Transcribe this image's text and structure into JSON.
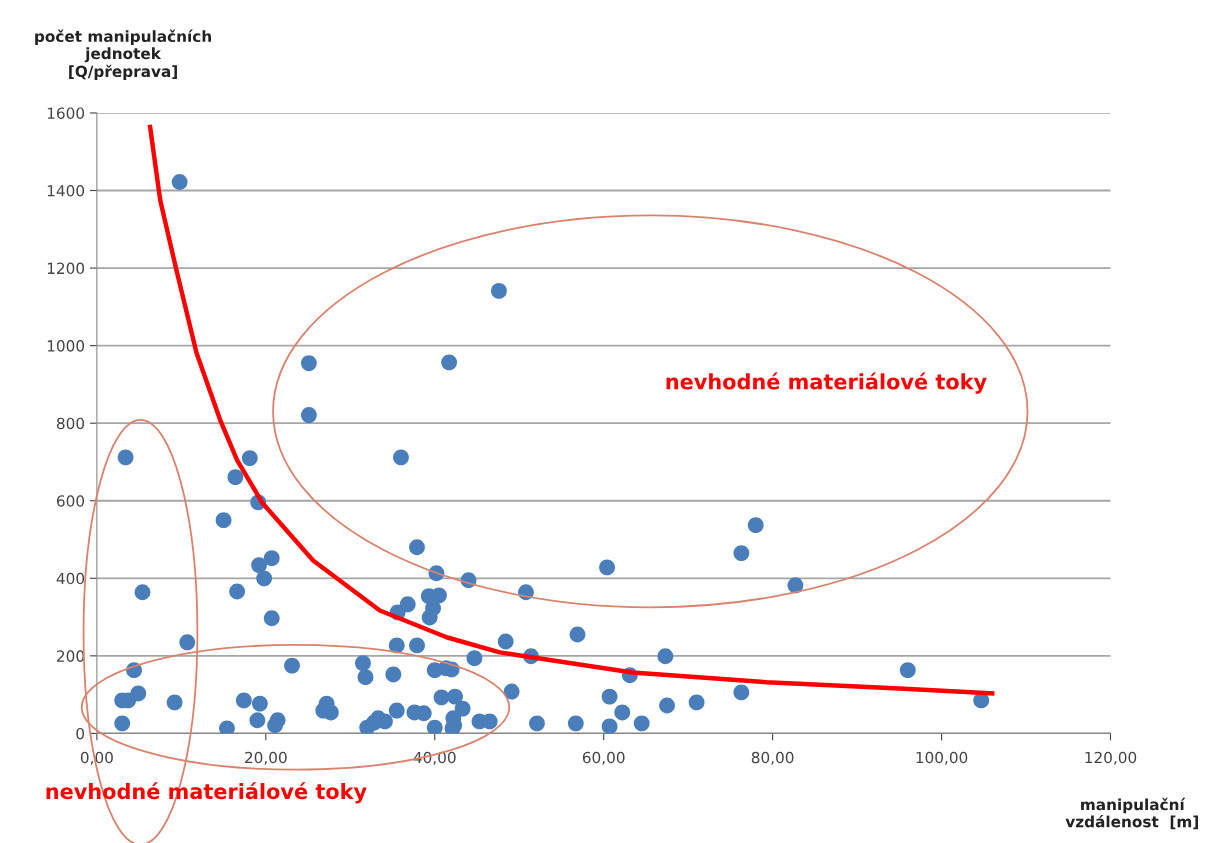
{
  "chart_data": {
    "type": "scatter",
    "xlabel": "manipulační\nvzdálenost  [m]",
    "ylabel": "počet manipulačních\njednotek\n[Q/přeprava]",
    "xlim": [
      0,
      120
    ],
    "ylim": [
      0,
      1600
    ],
    "xticks": [
      {
        "value": 0,
        "label": "0,00"
      },
      {
        "value": 20,
        "label": "20,00"
      },
      {
        "value": 40,
        "label": "40,00"
      },
      {
        "value": 60,
        "label": "60,00"
      },
      {
        "value": 80,
        "label": "80,00"
      },
      {
        "value": 100,
        "label": "100,00"
      },
      {
        "value": 120,
        "label": "120,00"
      }
    ],
    "yticks": [
      0,
      200,
      400,
      600,
      800,
      1000,
      1200,
      1400,
      1600
    ],
    "grid": "y",
    "series": [
      {
        "color": "#4a7ebb",
        "marker": "circle",
        "x": [
          9.8,
          25.1,
          41.7,
          47.6,
          25.1,
          36.0,
          3.4,
          18.1,
          16.4,
          19.1,
          15.0,
          78.0,
          76.3,
          37.9,
          19.2,
          20.7,
          60.4,
          19.8,
          40.2,
          44.0,
          16.6,
          5.4,
          50.8,
          82.7,
          40.5,
          39.3,
          36.8,
          35.6,
          39.8,
          20.7,
          39.4,
          10.7,
          56.9,
          48.4,
          35.5,
          37.9,
          67.3,
          51.4,
          96.0,
          23.1,
          31.5,
          40.0,
          41.3,
          42.0,
          44.7,
          4.4,
          63.1,
          35.1,
          31.8,
          60.7,
          42.4,
          40.8,
          49.1,
          76.3,
          67.5,
          71.0,
          4.9,
          3.0,
          3.7,
          9.2,
          17.4,
          19.3,
          27.2,
          26.8,
          27.7,
          35.5,
          37.6,
          38.7,
          43.3,
          42.2,
          62.2,
          104.7,
          3.0,
          15.4,
          19.0,
          21.4,
          21.1,
          32.0,
          32.8,
          33.3,
          34.1,
          40.0,
          42.1,
          42.3,
          45.3,
          46.5,
          52.1,
          56.7,
          60.7,
          64.5
        ],
        "values": [
          1422,
          955,
          957,
          1141,
          821,
          712,
          712,
          710,
          661,
          596,
          550,
          537,
          465,
          480,
          434,
          452,
          428,
          400,
          413,
          395,
          366,
          364,
          364,
          382,
          356,
          354,
          333,
          312,
          323,
          297,
          299,
          235,
          255,
          237,
          227,
          227,
          199,
          199,
          163,
          175,
          181,
          163,
          168,
          165,
          194,
          163,
          150,
          152,
          145,
          95,
          95,
          93,
          108,
          106,
          72,
          80,
          103,
          85,
          85,
          80,
          85,
          77,
          77,
          59,
          54,
          59,
          54,
          52,
          64,
          39,
          54,
          85,
          26,
          13,
          34,
          34,
          21,
          15,
          28,
          39,
          31,
          15,
          13,
          21,
          31,
          31,
          26,
          26,
          18,
          26
        ]
      },
      {
        "type": "line",
        "color": "#ff0000",
        "line_style": "solid",
        "x": [
          6.3,
          7.5,
          9.5,
          11.8,
          14.6,
          16.6,
          19.6,
          25.6,
          33.5,
          41.4,
          47.7,
          50.1,
          63.4,
          79.3,
          95.0,
          106.0
        ],
        "values": [
          1564,
          1375,
          1187,
          981,
          808,
          705,
          594,
          446,
          317,
          248,
          209,
          201,
          157,
          132,
          116,
          103
        ]
      }
    ],
    "annotations": [
      "nevhodné materiálové toky",
      "nevhodné materiálové toky"
    ]
  }
}
